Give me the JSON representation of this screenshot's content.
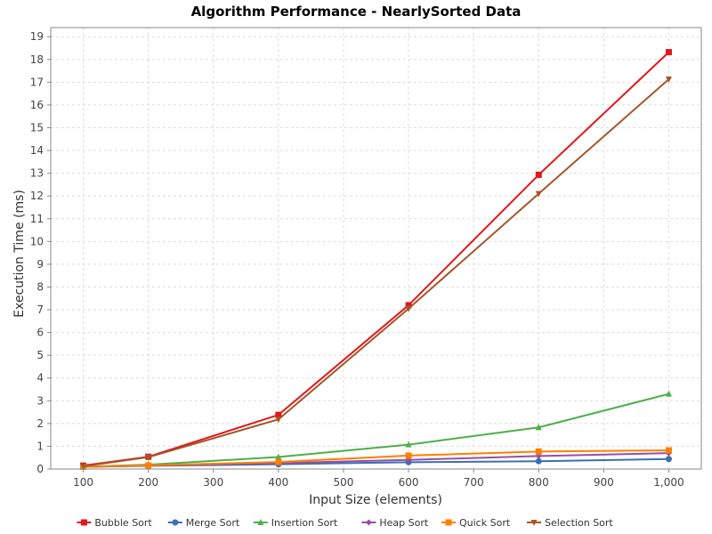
{
  "chart_data": {
    "type": "line",
    "title": "Algorithm Performance - NearlySorted Data",
    "xlabel": "Input Size (elements)",
    "ylabel": "Execution Time (ms)",
    "xlim": [
      50,
      1050
    ],
    "ylim": [
      0,
      19.4
    ],
    "x_ticks": [
      100,
      200,
      300,
      400,
      500,
      600,
      700,
      800,
      900,
      1000
    ],
    "x_tick_labels": [
      "100",
      "200",
      "300",
      "400",
      "500",
      "600",
      "700",
      "800",
      "900",
      "1,000"
    ],
    "y_ticks": [
      0,
      1,
      2,
      3,
      4,
      5,
      6,
      7,
      8,
      9,
      10,
      11,
      12,
      13,
      14,
      15,
      16,
      17,
      18,
      19
    ],
    "grid": true,
    "legend_position": "bottom",
    "x": [
      100,
      200,
      400,
      600,
      800,
      1000
    ],
    "series": [
      {
        "name": "Bubble Sort",
        "color": "#e0171b",
        "marker": "square",
        "values": [
          0.15,
          0.54,
          2.38,
          7.2,
          12.93,
          18.32
        ]
      },
      {
        "name": "Merge Sort",
        "color": "#3b6fb6",
        "marker": "circle",
        "values": [
          0.1,
          0.14,
          0.21,
          0.3,
          0.34,
          0.44
        ]
      },
      {
        "name": "Insertion Sort",
        "color": "#4daf4a",
        "marker": "triangle-up",
        "values": [
          0.1,
          0.19,
          0.53,
          1.07,
          1.83,
          3.3
        ]
      },
      {
        "name": "Heap Sort",
        "color": "#984ea3",
        "marker": "diamond",
        "values": [
          0.1,
          0.15,
          0.26,
          0.4,
          0.57,
          0.7
        ]
      },
      {
        "name": "Quick Sort",
        "color": "#ff7f00",
        "marker": "square",
        "values": [
          0.1,
          0.16,
          0.31,
          0.59,
          0.77,
          0.82
        ]
      },
      {
        "name": "Selection Sort",
        "color": "#a65628",
        "marker": "triangle-down",
        "values": [
          0.12,
          0.52,
          2.18,
          7.05,
          12.1,
          17.13
        ]
      }
    ]
  }
}
